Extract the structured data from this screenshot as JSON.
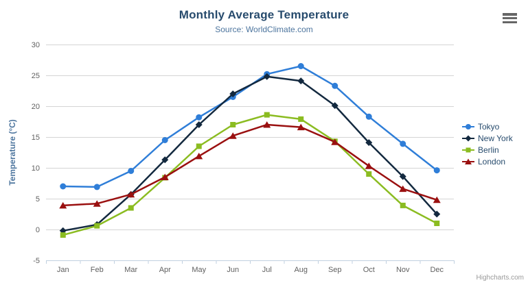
{
  "chart_data": {
    "type": "line",
    "title": "Monthly Average Temperature",
    "subtitle": "Source: WorldClimate.com",
    "xlabel": "",
    "ylabel": "Temperature (°C)",
    "categories": [
      "Jan",
      "Feb",
      "Mar",
      "Apr",
      "May",
      "Jun",
      "Jul",
      "Aug",
      "Sep",
      "Oct",
      "Nov",
      "Dec"
    ],
    "ylim": [
      -5,
      30
    ],
    "yticks": [
      -5,
      0,
      5,
      10,
      15,
      20,
      25,
      30
    ],
    "grid": true,
    "legend_position": "right",
    "series": [
      {
        "name": "Tokyo",
        "marker": "circle",
        "color": "#2f7ed8",
        "values": [
          7.0,
          6.9,
          9.5,
          14.5,
          18.2,
          21.5,
          25.2,
          26.5,
          23.3,
          18.3,
          13.9,
          9.6
        ]
      },
      {
        "name": "New York",
        "marker": "diamond",
        "color": "#13293f",
        "values": [
          -0.2,
          0.8,
          5.7,
          11.3,
          17.0,
          22.0,
          24.8,
          24.1,
          20.1,
          14.1,
          8.6,
          2.5
        ]
      },
      {
        "name": "Berlin",
        "marker": "square",
        "color": "#8bbc21",
        "values": [
          -0.9,
          0.6,
          3.5,
          8.4,
          13.5,
          17.0,
          18.6,
          17.9,
          14.3,
          9.0,
          3.9,
          1.0
        ]
      },
      {
        "name": "London",
        "marker": "triangle",
        "color": "#9a1010",
        "values": [
          3.9,
          4.2,
          5.7,
          8.5,
          11.9,
          15.2,
          17.0,
          16.6,
          14.2,
          10.3,
          6.6,
          4.8
        ]
      }
    ]
  },
  "colors": {
    "title": "#274b6d",
    "subtitle": "#4d759e",
    "yaxis_title": "#4d759e",
    "axis_label": "#606060",
    "grid": "#d4d4d4",
    "axis_line": "#c0d0e0",
    "legend_label": "#274b6d",
    "credit": "#999999",
    "menu_icon": "#666666"
  },
  "menu": {
    "icon": "hamburger-icon"
  },
  "credit": {
    "label": "Highcharts.com"
  }
}
